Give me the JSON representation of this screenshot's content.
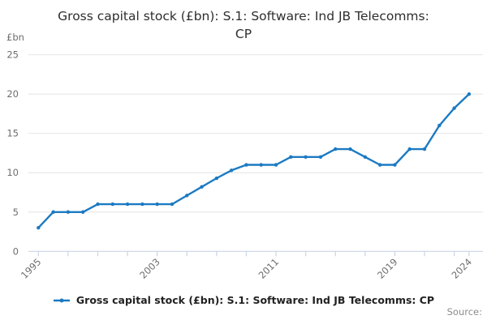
{
  "header": {
    "title_line1": "Gross capital stock (£bn): S.1: Software: Ind JB Telecomms:",
    "title_line2": "CP"
  },
  "y_axis": {
    "unit": "£bn",
    "tick_labels": [
      "0",
      "5",
      "10",
      "15",
      "20",
      "25"
    ]
  },
  "x_axis": {
    "labeled_ticks": [
      "1995",
      "2003",
      "2011",
      "2019",
      "2024"
    ]
  },
  "legend": {
    "label": "Gross capital stock (£bn): S.1: Software: Ind JB Telecomms: CP"
  },
  "footer": {
    "source_label": "Source:"
  },
  "colors": {
    "line": "#1b7ac2",
    "grid": "#e4e4e4",
    "axis": "#c9d4e4",
    "tick_text": "#6e6e6e",
    "title_text": "#2e2e2e"
  },
  "chart_data": {
    "type": "line",
    "title": "Gross capital stock (£bn): S.1: Software: Ind JB Telecomms: CP",
    "ylabel": "£bn",
    "ylim": [
      0,
      25
    ],
    "yticks": [
      0,
      5,
      10,
      15,
      20,
      25
    ],
    "grid": true,
    "legend_position": "bottom",
    "marker": "circle",
    "x": [
      1995,
      1996,
      1997,
      1998,
      1999,
      2000,
      2001,
      2002,
      2003,
      2004,
      2005,
      2006,
      2007,
      2008,
      2009,
      2010,
      2011,
      2012,
      2013,
      2014,
      2015,
      2016,
      2017,
      2018,
      2019,
      2020,
      2021,
      2022,
      2023,
      2024
    ],
    "xticks_minor_years": [
      1995,
      1997,
      1999,
      2001,
      2003,
      2005,
      2007,
      2009,
      2011,
      2013,
      2015,
      2017,
      2019,
      2021,
      2023,
      2024
    ],
    "xticks_labeled_years": [
      1995,
      2003,
      2011,
      2019,
      2024
    ],
    "series": [
      {
        "name": "Gross capital stock (£bn): S.1: Software: Ind JB Telecomms: CP",
        "values": [
          3,
          5,
          5,
          5,
          6,
          6,
          6,
          6,
          6,
          6,
          7.1,
          8.2,
          9.3,
          10.3,
          11,
          11,
          11,
          12,
          12,
          12,
          13,
          13,
          12,
          11,
          11,
          13,
          13,
          16,
          18.2,
          20
        ]
      }
    ]
  }
}
